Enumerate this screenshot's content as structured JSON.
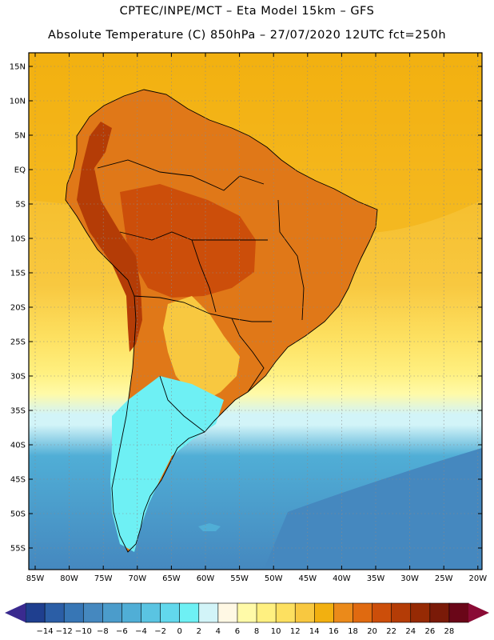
{
  "header": {
    "line1": "CPTEC/INPE/MCT –  Eta Model 15km – GFS",
    "line2": "Absolute Temperature (C) 850hPa – 27/07/2020 12UTC fct=250h"
  },
  "axes": {
    "lat_labels": [
      "15N",
      "10N",
      "5N",
      "EQ",
      "5S",
      "10S",
      "15S",
      "20S",
      "25S",
      "30S",
      "35S",
      "40S",
      "45S",
      "50S",
      "55S"
    ],
    "lon_labels": [
      "85W",
      "80W",
      "75W",
      "70W",
      "65W",
      "60W",
      "55W",
      "50W",
      "45W",
      "40W",
      "35W",
      "30W",
      "25W",
      "20W"
    ]
  },
  "colorbar": {
    "labels": [
      "-14",
      "-12",
      "-10",
      "-8",
      "-6",
      "-4",
      "-2",
      "0",
      "2",
      "4",
      "6",
      "8",
      "10",
      "12",
      "14",
      "16",
      "18",
      "20",
      "22",
      "24",
      "26",
      "28"
    ],
    "colors": [
      "#1f3f8f",
      "#2b5ea6",
      "#3776b5",
      "#4588bf",
      "#4b9ccb",
      "#50aed6",
      "#5ac4e2",
      "#62d8ec",
      "#6ef0f4",
      "#d2f4f8",
      "#fff8e4",
      "#fffaa8",
      "#fff080",
      "#fde060",
      "#f8c840",
      "#f2b010",
      "#eb8a1a",
      "#e06a10",
      "#cc4e0a",
      "#b43c06",
      "#962a04",
      "#7a1a08",
      "#6a0618"
    ],
    "end_color_low": "#3a2a8f",
    "end_color_high": "#8a0b35"
  },
  "map_colors": {
    "ocean_north": "#f2b010",
    "ocean_band_1": "#f8c840",
    "ocean_band_2": "#fde060",
    "ocean_band_3": "#fff080",
    "ocean_band_4": "#fffaa8",
    "ocean_band_5": "#d2f4f8",
    "ocean_south": "#50aed6",
    "ocean_deep": "#4588bf",
    "land_main": "#e07818",
    "land_hot": "#cc4e0a",
    "land_hottest": "#b43c06",
    "land_cool": "#f8c840",
    "land_cold": "#6ef0f4",
    "border": "#000000"
  }
}
